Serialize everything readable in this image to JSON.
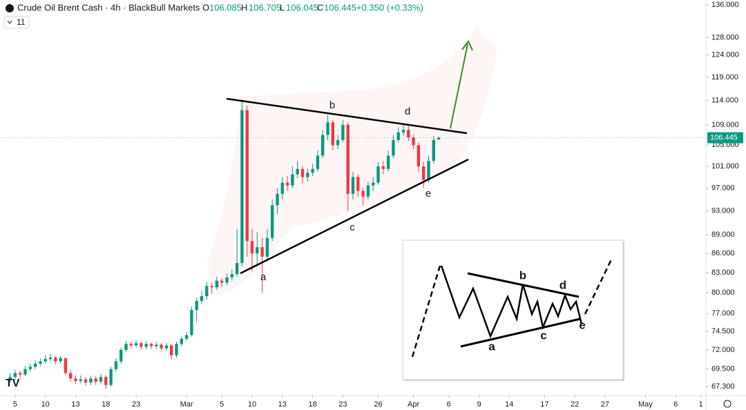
{
  "chart_data": {
    "type": "candlestick",
    "title": "Crude Oil Brent Cash · 4h · BlackBull Markets",
    "header_keys": [
      "O",
      "H",
      "L",
      "C"
    ],
    "change": "+0.350 (+0.33%)",
    "indicator_count": "11",
    "annotations": [
      "a",
      "b",
      "c",
      "d",
      "e"
    ],
    "up_color": "#089981",
    "down_color": "#f23645",
    "log_scale": true,
    "grid": false,
    "ylim": [
      66.2,
      137.2
    ],
    "yticks": [
      {
        "value": 136,
        "label": "136.000"
      },
      {
        "value": 128,
        "label": "128.000"
      },
      {
        "value": 124,
        "label": "124.000"
      },
      {
        "value": 119,
        "label": "119.000"
      },
      {
        "value": 114,
        "label": "114.000"
      },
      {
        "value": 109,
        "label": "109.000"
      },
      {
        "value": 105,
        "label": "105.000"
      },
      {
        "value": 101,
        "label": "101.000"
      },
      {
        "value": 97,
        "label": "97.000"
      },
      {
        "value": 93,
        "label": "93.000"
      },
      {
        "value": 89,
        "label": "89.000"
      },
      {
        "value": 86,
        "label": "86.000"
      },
      {
        "value": 83,
        "label": "83.000"
      },
      {
        "value": 80,
        "label": "80.000"
      },
      {
        "value": 77,
        "label": "77.000"
      },
      {
        "value": 74.5,
        "label": "74.500"
      },
      {
        "value": 72,
        "label": "72.000"
      },
      {
        "value": 69.5,
        "label": "69.500"
      },
      {
        "value": 67.3,
        "label": "67.300"
      }
    ],
    "xlim": [
      -2,
      138
    ],
    "xticks": [
      {
        "value": 1,
        "label": "5"
      },
      {
        "value": 7,
        "label": "10"
      },
      {
        "value": 13,
        "label": "13"
      },
      {
        "value": 19,
        "label": "18"
      },
      {
        "value": 25,
        "label": "23"
      },
      {
        "value": 35,
        "label": "Mar"
      },
      {
        "value": 42,
        "label": "5"
      },
      {
        "value": 48,
        "label": "10"
      },
      {
        "value": 54,
        "label": "13"
      },
      {
        "value": 60,
        "label": "18"
      },
      {
        "value": 66,
        "label": "23"
      },
      {
        "value": 73,
        "label": "26"
      },
      {
        "value": 80,
        "label": "Apr"
      },
      {
        "value": 87,
        "label": "6"
      },
      {
        "value": 93,
        "label": "9"
      },
      {
        "value": 99,
        "label": "14"
      },
      {
        "value": 106,
        "label": "17"
      },
      {
        "value": 112,
        "label": "22"
      },
      {
        "value": 118,
        "label": "27"
      },
      {
        "value": 126,
        "label": "May"
      },
      {
        "value": 132,
        "label": "6"
      },
      {
        "value": 137,
        "label": "1"
      }
    ],
    "x": [
      0,
      1,
      2,
      3,
      4,
      5,
      6,
      7,
      8,
      9,
      10,
      11,
      12,
      13,
      14,
      15,
      16,
      17,
      18,
      19,
      20,
      21,
      22,
      23,
      24,
      25,
      26,
      27,
      28,
      29,
      30,
      31,
      32,
      33,
      34,
      35,
      36,
      37,
      38,
      39,
      40,
      41,
      42,
      43,
      44,
      45,
      46,
      47,
      48,
      49,
      50,
      51,
      52,
      53,
      54,
      55,
      56,
      57,
      58,
      59,
      60,
      61,
      62,
      63,
      64,
      65,
      66,
      67,
      68,
      69,
      70,
      71,
      72,
      73,
      74,
      75,
      76,
      77,
      78,
      79,
      80,
      81,
      82,
      83,
      84,
      85
    ],
    "ohlc": [
      [
        68.2,
        69,
        67.8,
        68.5
      ],
      [
        68.5,
        69.4,
        68.1,
        69
      ],
      [
        69,
        69.3,
        68.3,
        68.8
      ],
      [
        68.8,
        69.9,
        68.6,
        69.5
      ],
      [
        69.5,
        70.2,
        69.2,
        69.8
      ],
      [
        69.8,
        70.6,
        69.5,
        70.2
      ],
      [
        70.2,
        70.9,
        69.9,
        70.5
      ],
      [
        70.5,
        71.3,
        70.2,
        70.8
      ],
      [
        70.8,
        71.5,
        70.5,
        71
      ],
      [
        71,
        71.2,
        70.1,
        70.5
      ],
      [
        70.5,
        71.2,
        70.2,
        70.9
      ],
      [
        70.9,
        71,
        68.7,
        69
      ],
      [
        69,
        69.4,
        67.9,
        68.3
      ],
      [
        68.3,
        68.7,
        67.6,
        68
      ],
      [
        68,
        68.7,
        67.7,
        68.2
      ],
      [
        68.2,
        68.5,
        67.4,
        67.8
      ],
      [
        67.8,
        68.7,
        67.5,
        68.3
      ],
      [
        68.3,
        68.6,
        67.5,
        67.9
      ],
      [
        67.9,
        68.9,
        67.6,
        68.5
      ],
      [
        68.5,
        68.7,
        67,
        67.5
      ],
      [
        67.5,
        69.8,
        67.3,
        69.5
      ],
      [
        69.5,
        70.9,
        69.2,
        70.5
      ],
      [
        70.5,
        72.3,
        70.2,
        72
      ],
      [
        72,
        73.2,
        71.7,
        72.8
      ],
      [
        72.8,
        73.1,
        72.2,
        72.6
      ],
      [
        72.6,
        73.3,
        72.3,
        72.9
      ],
      [
        72.9,
        73.1,
        72,
        72.4
      ],
      [
        72.4,
        73.2,
        72.1,
        72.8
      ],
      [
        72.8,
        73,
        72.1,
        72.5
      ],
      [
        72.5,
        73.1,
        72.2,
        72.7
      ],
      [
        72.7,
        72.9,
        71.8,
        72.2
      ],
      [
        72.2,
        72.9,
        71.9,
        72.6
      ],
      [
        72.6,
        72.8,
        70.8,
        71.3
      ],
      [
        71.3,
        73.1,
        71,
        72.8
      ],
      [
        72.8,
        73.9,
        72.5,
        73.5
      ],
      [
        73.5,
        74.4,
        73.2,
        74
      ],
      [
        74,
        78,
        73.8,
        77.5
      ],
      [
        77.5,
        79.3,
        75.8,
        78.8
      ],
      [
        78.8,
        80.2,
        78.3,
        79.5
      ],
      [
        79.5,
        81.6,
        79,
        81
      ],
      [
        81,
        81.5,
        79.8,
        80.8
      ],
      [
        80.8,
        82.4,
        80.4,
        81.8
      ],
      [
        81.8,
        82.2,
        80.9,
        81.5
      ],
      [
        81.5,
        82.9,
        81.1,
        82.3
      ],
      [
        82.3,
        83.5,
        81.8,
        82.8
      ],
      [
        82.8,
        90,
        82.4,
        84.5
      ],
      [
        84.5,
        114,
        84,
        112
      ],
      [
        112,
        113,
        85.5,
        88
      ],
      [
        88,
        90,
        83.2,
        86
      ],
      [
        86,
        89.5,
        84,
        87
      ],
      [
        87,
        88.5,
        80,
        85.5
      ],
      [
        85.5,
        90,
        84.8,
        88.5
      ],
      [
        88.5,
        95,
        88,
        94
      ],
      [
        94,
        97,
        92.5,
        96
      ],
      [
        96,
        99,
        95,
        98
      ],
      [
        98,
        99.2,
        96.5,
        97.5
      ],
      [
        97.5,
        101,
        97,
        99.5
      ],
      [
        99.5,
        102,
        98.8,
        100.5
      ],
      [
        100.5,
        101,
        97.8,
        99
      ],
      [
        99,
        100.6,
        98.2,
        99.8
      ],
      [
        99.8,
        101.5,
        99.2,
        100.5
      ],
      [
        100.5,
        104,
        100,
        103
      ],
      [
        103,
        108,
        102.5,
        107
      ],
      [
        107,
        111,
        106,
        109.5
      ],
      [
        109.5,
        110,
        104,
        105
      ],
      [
        105,
        107,
        104.2,
        106
      ],
      [
        106,
        110,
        105.5,
        109
      ],
      [
        109,
        109.5,
        93,
        96
      ],
      [
        96,
        100,
        95,
        99
      ],
      [
        99,
        99.5,
        95.5,
        96.5
      ],
      [
        96.5,
        97,
        94,
        95.5
      ],
      [
        95.5,
        98.2,
        95,
        97.5
      ],
      [
        97.5,
        99,
        96.5,
        98
      ],
      [
        98,
        101.8,
        97.6,
        101
      ],
      [
        101,
        102,
        99.5,
        100.5
      ],
      [
        100.5,
        104,
        100,
        103
      ],
      [
        103,
        107,
        102.5,
        106
      ],
      [
        106,
        108.5,
        105.5,
        107.5
      ],
      [
        107.5,
        109,
        106.8,
        108
      ],
      [
        108,
        108.8,
        105.8,
        106.5
      ],
      [
        106.5,
        107,
        104.2,
        105
      ],
      [
        105,
        105.5,
        100,
        101
      ],
      [
        101,
        101.8,
        97,
        98.5
      ],
      [
        98.5,
        103,
        98,
        102
      ],
      [
        102,
        106.8,
        101.5,
        106
      ],
      [
        106.085,
        106.705,
        106.045,
        106.445
      ]
    ]
  },
  "inset": {
    "labels": [
      "a",
      "b",
      "c",
      "d",
      "e"
    ]
  }
}
